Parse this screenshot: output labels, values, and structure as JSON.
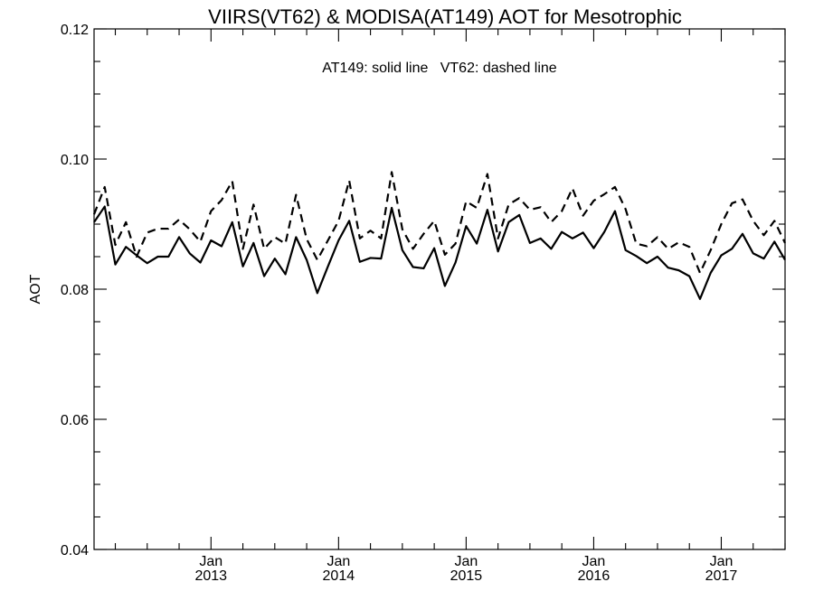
{
  "chart_data": {
    "type": "line",
    "title": "VIIRS(VT62) & MODISA(AT149)  AOT for Mesotrophic",
    "annotation": "AT149: solid line   VT62: dashed line",
    "ylabel": "AOT",
    "xlabel": "",
    "ylim": [
      0.04,
      0.12
    ],
    "y_ticks": [
      "0.04",
      "0.06",
      "0.08",
      "0.10",
      "0.12"
    ],
    "x_ticks": [
      {
        "month": "Jan",
        "year": "2013"
      },
      {
        "month": "Jan",
        "year": "2014"
      },
      {
        "month": "Jan",
        "year": "2015"
      },
      {
        "month": "Jan",
        "year": "2016"
      },
      {
        "month": "Jan",
        "year": "2017"
      }
    ],
    "xlim": [
      "2012-02",
      "2017-07"
    ],
    "grid": false,
    "x": [
      "2012-02",
      "2012-03",
      "2012-04",
      "2012-05",
      "2012-06",
      "2012-07",
      "2012-08",
      "2012-09",
      "2012-10",
      "2012-11",
      "2012-12",
      "2013-01",
      "2013-02",
      "2013-03",
      "2013-04",
      "2013-05",
      "2013-06",
      "2013-07",
      "2013-08",
      "2013-09",
      "2013-10",
      "2013-11",
      "2013-12",
      "2014-01",
      "2014-02",
      "2014-03",
      "2014-04",
      "2014-05",
      "2014-06",
      "2014-07",
      "2014-08",
      "2014-09",
      "2014-10",
      "2014-11",
      "2014-12",
      "2015-01",
      "2015-02",
      "2015-03",
      "2015-04",
      "2015-05",
      "2015-06",
      "2015-07",
      "2015-08",
      "2015-09",
      "2015-10",
      "2015-11",
      "2015-12",
      "2016-01",
      "2016-02",
      "2016-03",
      "2016-04",
      "2016-05",
      "2016-06",
      "2016-07",
      "2016-08",
      "2016-09",
      "2016-10",
      "2016-11",
      "2016-12",
      "2017-01",
      "2017-02",
      "2017-03",
      "2017-04",
      "2017-05",
      "2017-06",
      "2017-07"
    ],
    "series": [
      {
        "name": "AT149",
        "style": "solid",
        "color": "#000000",
        "values": [
          0.0903,
          0.0927,
          0.0838,
          0.0865,
          0.0852,
          0.084,
          0.085,
          0.085,
          0.088,
          0.0855,
          0.0841,
          0.0875,
          0.0866,
          0.0903,
          0.0835,
          0.0871,
          0.082,
          0.0847,
          0.0823,
          0.088,
          0.0845,
          0.0794,
          0.0835,
          0.0875,
          0.0905,
          0.0842,
          0.0848,
          0.0847,
          0.0925,
          0.086,
          0.0834,
          0.0832,
          0.0863,
          0.0805,
          0.0841,
          0.0897,
          0.087,
          0.0922,
          0.0858,
          0.0903,
          0.0914,
          0.0871,
          0.0878,
          0.0862,
          0.0888,
          0.0878,
          0.0887,
          0.0863,
          0.0888,
          0.092,
          0.086,
          0.0851,
          0.084,
          0.085,
          0.0833,
          0.0829,
          0.082,
          0.0785,
          0.0825,
          0.0852,
          0.0862,
          0.0885,
          0.0855,
          0.0847,
          0.0873,
          0.0845
        ]
      },
      {
        "name": "VT62",
        "style": "dashed",
        "color": "#000000",
        "values": [
          0.0915,
          0.0957,
          0.0868,
          0.0903,
          0.085,
          0.0887,
          0.0893,
          0.0893,
          0.0907,
          0.0892,
          0.0873,
          0.092,
          0.0937,
          0.0966,
          0.0862,
          0.093,
          0.0862,
          0.088,
          0.087,
          0.0945,
          0.0877,
          0.0845,
          0.0875,
          0.0905,
          0.0967,
          0.0878,
          0.089,
          0.0878,
          0.098,
          0.0892,
          0.0862,
          0.0885,
          0.0905,
          0.0853,
          0.087,
          0.0935,
          0.0925,
          0.0977,
          0.0878,
          0.093,
          0.094,
          0.0922,
          0.0926,
          0.0903,
          0.092,
          0.0955,
          0.0913,
          0.0936,
          0.0946,
          0.0957,
          0.0923,
          0.087,
          0.0866,
          0.088,
          0.0862,
          0.0872,
          0.0865,
          0.0825,
          0.086,
          0.09,
          0.0932,
          0.0938,
          0.0905,
          0.0883,
          0.0905,
          0.0871
        ]
      }
    ]
  }
}
